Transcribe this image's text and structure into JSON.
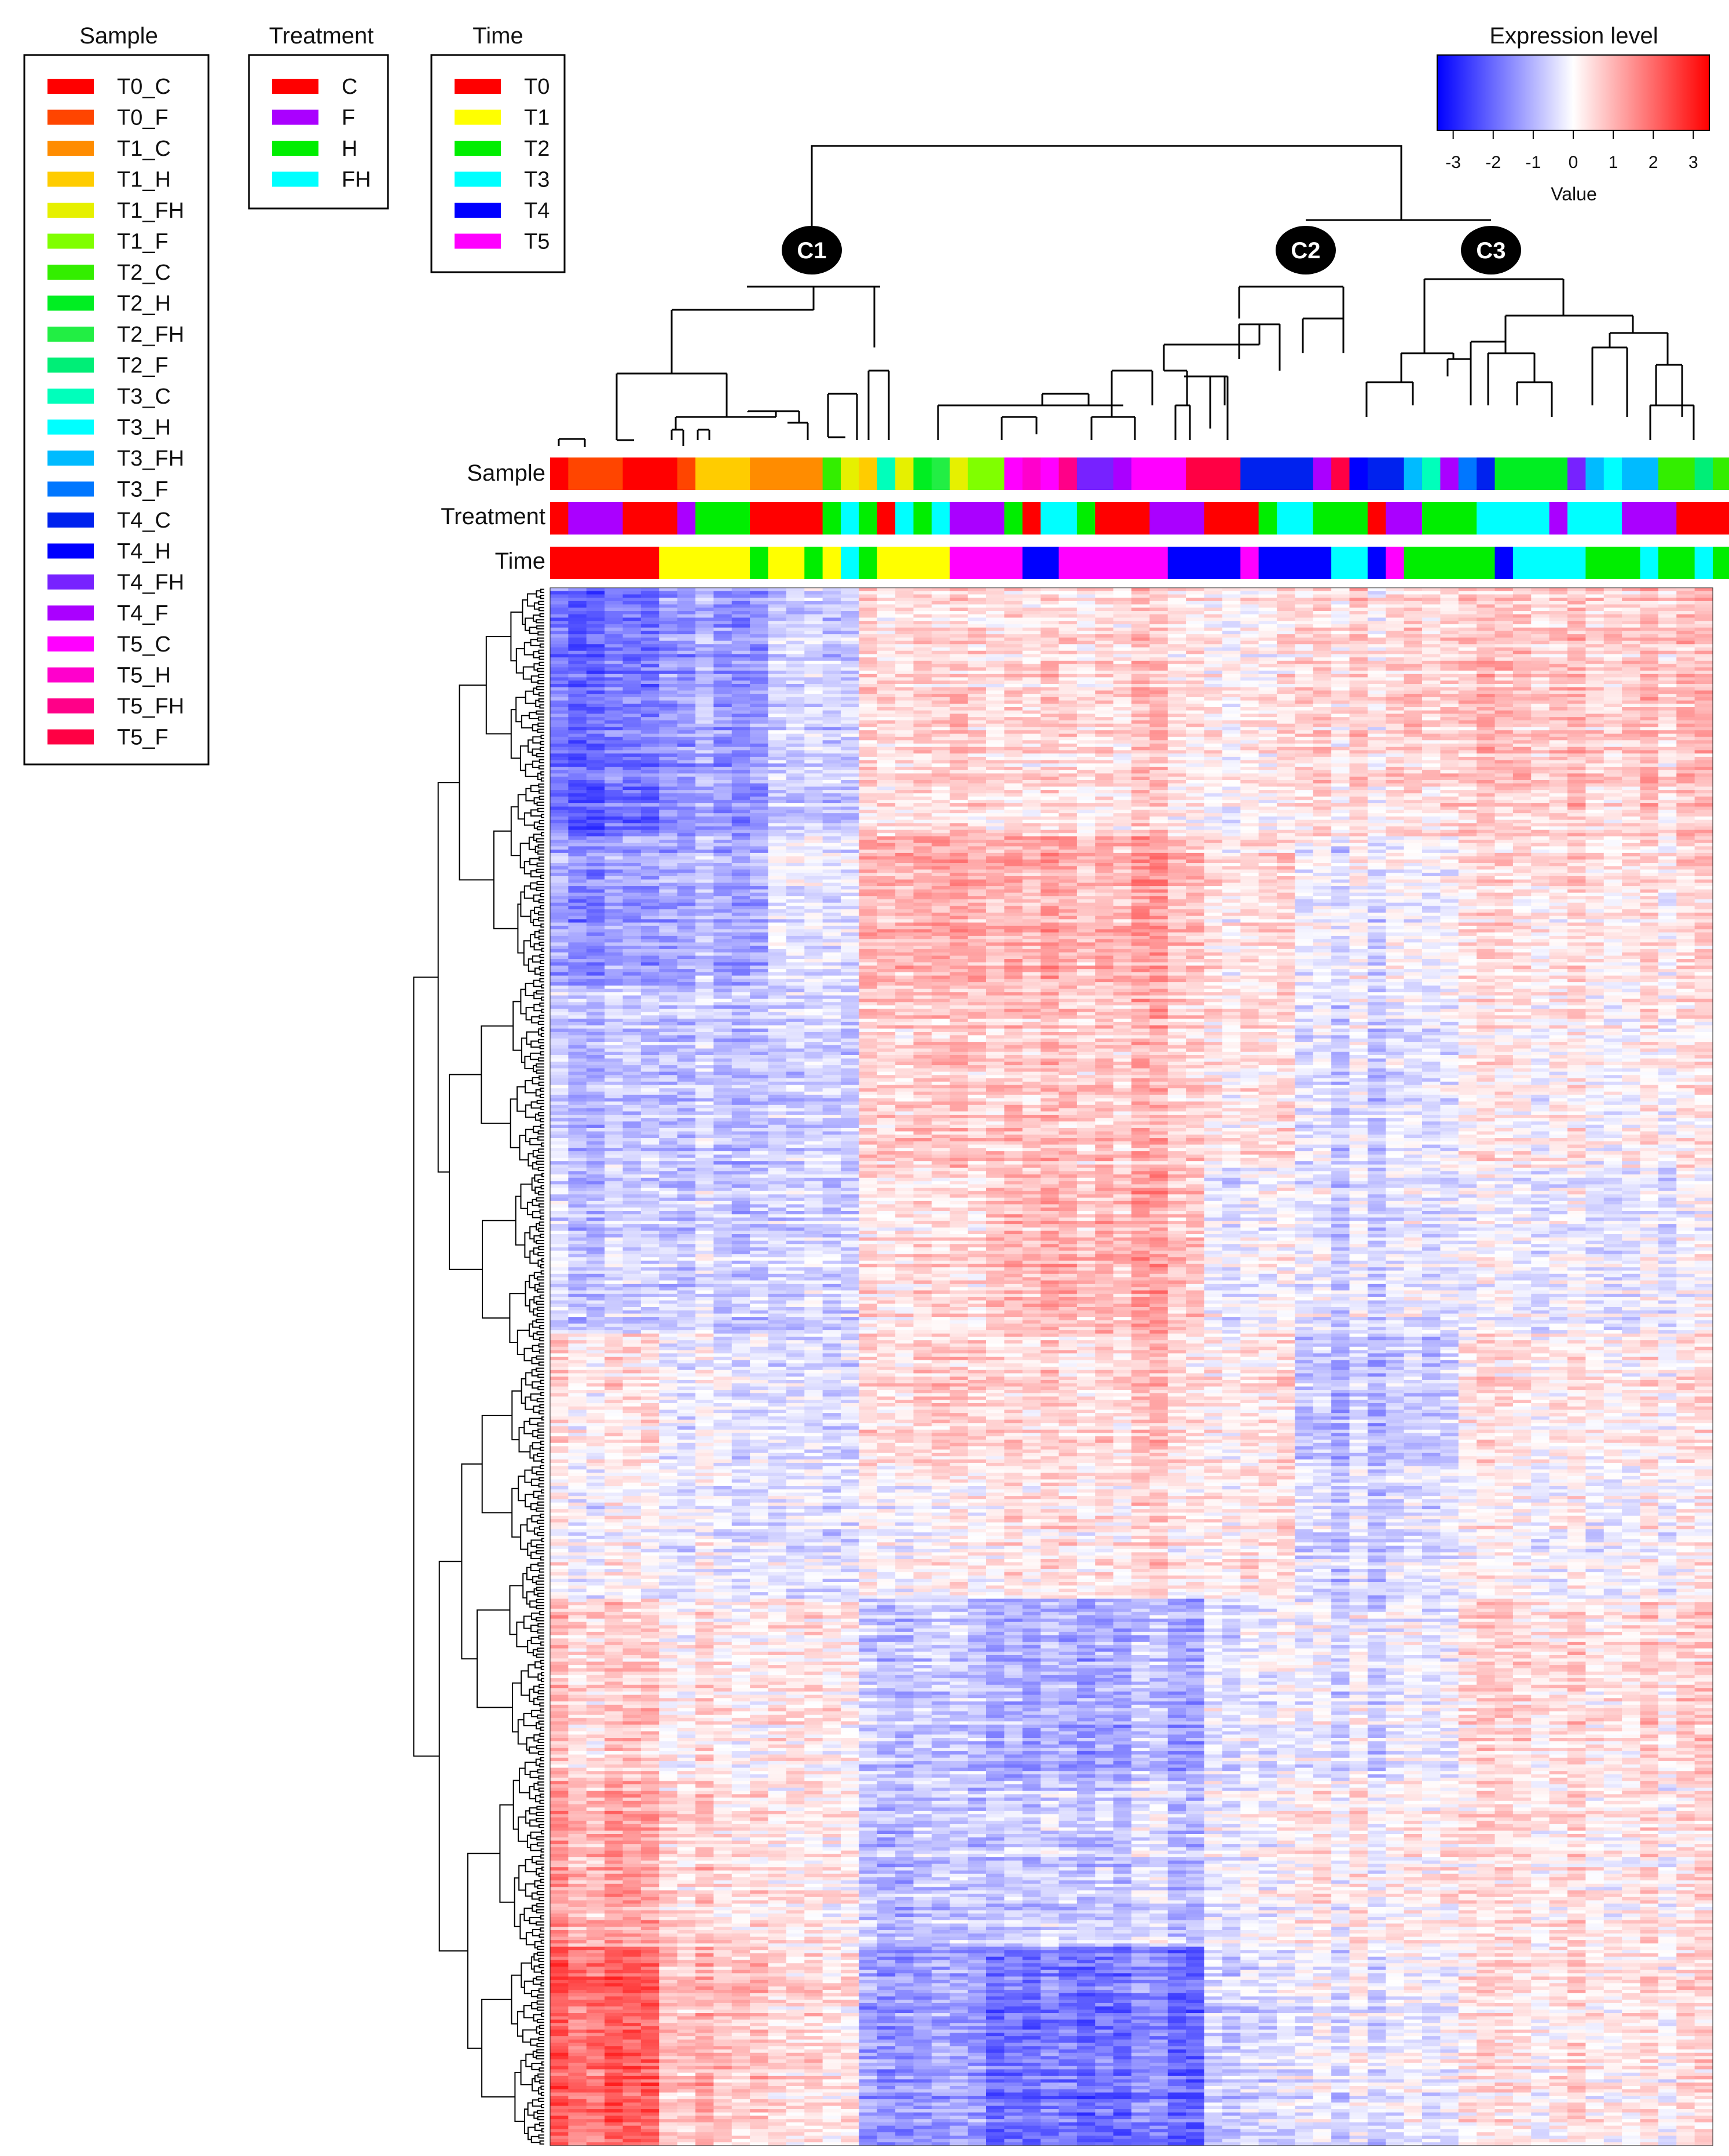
{
  "chart_data": {
    "type": "heatmap",
    "title": "",
    "colorbar": {
      "title": "Expression level",
      "label": "Value",
      "ticks": [
        "-3",
        "-2",
        "-1",
        "0",
        "1",
        "2",
        "3"
      ],
      "range": [
        -3.4,
        3.4
      ],
      "colors": {
        "low": "#0000ff",
        "mid": "#ffffff",
        "high": "#ff0000"
      }
    },
    "legends": [
      {
        "title": "Sample",
        "items": [
          {
            "label": "T0_C",
            "color": "#ff0000"
          },
          {
            "label": "T0_F",
            "color": "#ff4500"
          },
          {
            "label": "T1_C",
            "color": "#ff8c00"
          },
          {
            "label": "T1_H",
            "color": "#ffcc00"
          },
          {
            "label": "T1_FH",
            "color": "#e6f000"
          },
          {
            "label": "T1_F",
            "color": "#80ff00"
          },
          {
            "label": "T2_C",
            "color": "#33ee00"
          },
          {
            "label": "T2_H",
            "color": "#00ee22"
          },
          {
            "label": "T2_FH",
            "color": "#22ee44"
          },
          {
            "label": "T2_F",
            "color": "#00ee77"
          },
          {
            "label": "T3_C",
            "color": "#00ffbb"
          },
          {
            "label": "T3_H",
            "color": "#00ffff"
          },
          {
            "label": "T3_FH",
            "color": "#00bbff"
          },
          {
            "label": "T3_F",
            "color": "#0077ff"
          },
          {
            "label": "T4_C",
            "color": "#0022ee"
          },
          {
            "label": "T4_H",
            "color": "#0000ff"
          },
          {
            "label": "T4_FH",
            "color": "#7722ff"
          },
          {
            "label": "T4_F",
            "color": "#aa00ff"
          },
          {
            "label": "T5_C",
            "color": "#ff00ff"
          },
          {
            "label": "T5_H",
            "color": "#ff00cc"
          },
          {
            "label": "T5_FH",
            "color": "#ff0088"
          },
          {
            "label": "T5_F",
            "color": "#ff0044"
          }
        ]
      },
      {
        "title": "Treatment",
        "items": [
          {
            "label": "C",
            "color": "#ff0000"
          },
          {
            "label": "F",
            "color": "#aa00ff"
          },
          {
            "label": "H",
            "color": "#00ee00"
          },
          {
            "label": "FH",
            "color": "#00ffff"
          }
        ]
      },
      {
        "title": "Time",
        "items": [
          {
            "label": "T0",
            "color": "#ff0000"
          },
          {
            "label": "T1",
            "color": "#ffff00"
          },
          {
            "label": "T2",
            "color": "#00ee00"
          },
          {
            "label": "T3",
            "color": "#00ffff"
          },
          {
            "label": "T4",
            "color": "#0000ff"
          },
          {
            "label": "T5",
            "color": "#ff00ff"
          }
        ]
      }
    ],
    "annotation_rows": [
      {
        "name": "Sample",
        "runs": [
          [
            "T0_C",
            1
          ],
          [
            "T0_F",
            3
          ],
          [
            "T0_C",
            3
          ],
          [
            "T0_F",
            1
          ],
          [
            "T1_H",
            3
          ],
          [
            "T1_C",
            4
          ],
          [
            "T2_C",
            1
          ],
          [
            "T1_FH",
            1
          ],
          [
            "T1_H",
            1
          ],
          [
            "T3_C",
            1
          ],
          [
            "T1_FH",
            1
          ],
          [
            "T2_H",
            1
          ],
          [
            "T2_FH",
            1
          ],
          [
            "T1_FH",
            1
          ],
          [
            "T1_F",
            2
          ],
          [
            "T5_C",
            1
          ],
          [
            "T5_H",
            1
          ],
          [
            "T5_C",
            1
          ],
          [
            "T5_FH",
            1
          ],
          [
            "T4_FH",
            2
          ],
          [
            "T4_F",
            1
          ],
          [
            "T5_C",
            3
          ],
          [
            "T5_F",
            3
          ],
          [
            "T4_C",
            4
          ],
          [
            "T4_F",
            1
          ],
          [
            "T5_F",
            1
          ],
          [
            "T4_H",
            1
          ],
          [
            "T4_C",
            2
          ],
          [
            "T3_FH",
            1
          ],
          [
            "T3_C",
            1
          ],
          [
            "T4_F",
            1
          ],
          [
            "T3_F",
            1
          ],
          [
            "T4_C",
            1
          ],
          [
            "T2_H",
            4
          ],
          [
            "T4_FH",
            1
          ],
          [
            "T3_FH",
            1
          ],
          [
            "T3_H",
            1
          ],
          [
            "T3_FH",
            2
          ],
          [
            "T2_C",
            2
          ],
          [
            "T2_F",
            1
          ],
          [
            "T2_C",
            1
          ],
          [
            "T2_H",
            1
          ],
          [
            "T3_C",
            1
          ],
          [
            "T2_H",
            1
          ],
          [
            "T3_H",
            3
          ]
        ]
      },
      {
        "name": "Treatment",
        "runs": [
          [
            "C",
            1
          ],
          [
            "F",
            3
          ],
          [
            "C",
            3
          ],
          [
            "F",
            1
          ],
          [
            "H",
            3
          ],
          [
            "C",
            4
          ],
          [
            "H",
            1
          ],
          [
            "FH",
            1
          ],
          [
            "H",
            1
          ],
          [
            "C",
            1
          ],
          [
            "FH",
            1
          ],
          [
            "H",
            1
          ],
          [
            "FH",
            1
          ],
          [
            "F",
            3
          ],
          [
            "H",
            1
          ],
          [
            "C",
            1
          ],
          [
            "FH",
            2
          ],
          [
            "H",
            1
          ],
          [
            "C",
            3
          ],
          [
            "F",
            3
          ],
          [
            "C",
            3
          ],
          [
            "H",
            1
          ],
          [
            "FH",
            2
          ],
          [
            "H",
            3
          ],
          [
            "C",
            1
          ],
          [
            "F",
            2
          ],
          [
            "H",
            3
          ],
          [
            "FH",
            4
          ],
          [
            "F",
            1
          ],
          [
            "FH",
            3
          ],
          [
            "F",
            3
          ],
          [
            "C",
            3
          ],
          [
            "H",
            3
          ]
        ]
      },
      {
        "name": "Time",
        "runs": [
          [
            "T0",
            6
          ],
          [
            "T1",
            5
          ],
          [
            "T2",
            1
          ],
          [
            "T1",
            2
          ],
          [
            "T2",
            1
          ],
          [
            "T1",
            1
          ],
          [
            "T3",
            1
          ],
          [
            "T2",
            1
          ],
          [
            "T1",
            4
          ],
          [
            "T5",
            4
          ],
          [
            "T4",
            2
          ],
          [
            "T5",
            6
          ],
          [
            "T4",
            4
          ],
          [
            "T5",
            1
          ],
          [
            "T4",
            4
          ],
          [
            "T3",
            2
          ],
          [
            "T4",
            1
          ],
          [
            "T5",
            1
          ],
          [
            "T2",
            5
          ],
          [
            "T4",
            1
          ],
          [
            "T3",
            4
          ],
          [
            "T2",
            3
          ],
          [
            "T3",
            1
          ],
          [
            "T2",
            2
          ],
          [
            "T3",
            1
          ],
          [
            "T2",
            1
          ],
          [
            "T3",
            3
          ]
        ]
      }
    ],
    "clusters": [
      "C1",
      "C2",
      "C3"
    ],
    "row_groups": [
      {
        "rows": 75,
        "values": [
          -2.0,
          -1.3,
          -0.6,
          0.4,
          0.5,
          0.1,
          0.4,
          0.7
        ]
      },
      {
        "rows": 45,
        "values": [
          -1.5,
          -1.1,
          -0.3,
          0.9,
          1.0,
          0.3,
          -0.3,
          0.3
        ]
      },
      {
        "rows": 55,
        "values": [
          -0.8,
          -0.7,
          -0.5,
          0.6,
          0.8,
          0.3,
          -0.4,
          0.2
        ]
      },
      {
        "rows": 50,
        "values": [
          -0.7,
          -0.6,
          -0.5,
          0.3,
          1.0,
          -0.2,
          -0.4,
          -0.2
        ]
      },
      {
        "rows": 40,
        "values": [
          0.3,
          -0.2,
          -0.3,
          0.5,
          0.6,
          0.2,
          -0.8,
          0.3
        ]
      },
      {
        "rows": 40,
        "values": [
          -0.1,
          -0.2,
          -0.3,
          0.0,
          0.4,
          0.3,
          -0.5,
          0.0
        ]
      },
      {
        "rows": 55,
        "values": [
          0.6,
          0.3,
          0.4,
          -0.8,
          -1.0,
          -0.3,
          -0.3,
          0.5
        ]
      },
      {
        "rows": 50,
        "values": [
          1.1,
          0.5,
          0.3,
          -0.9,
          -0.6,
          -0.2,
          0.1,
          0.3
        ]
      },
      {
        "rows": 60,
        "values": [
          2.0,
          0.9,
          0.5,
          -1.4,
          -1.8,
          -0.6,
          -0.3,
          0.3
        ]
      }
    ]
  }
}
